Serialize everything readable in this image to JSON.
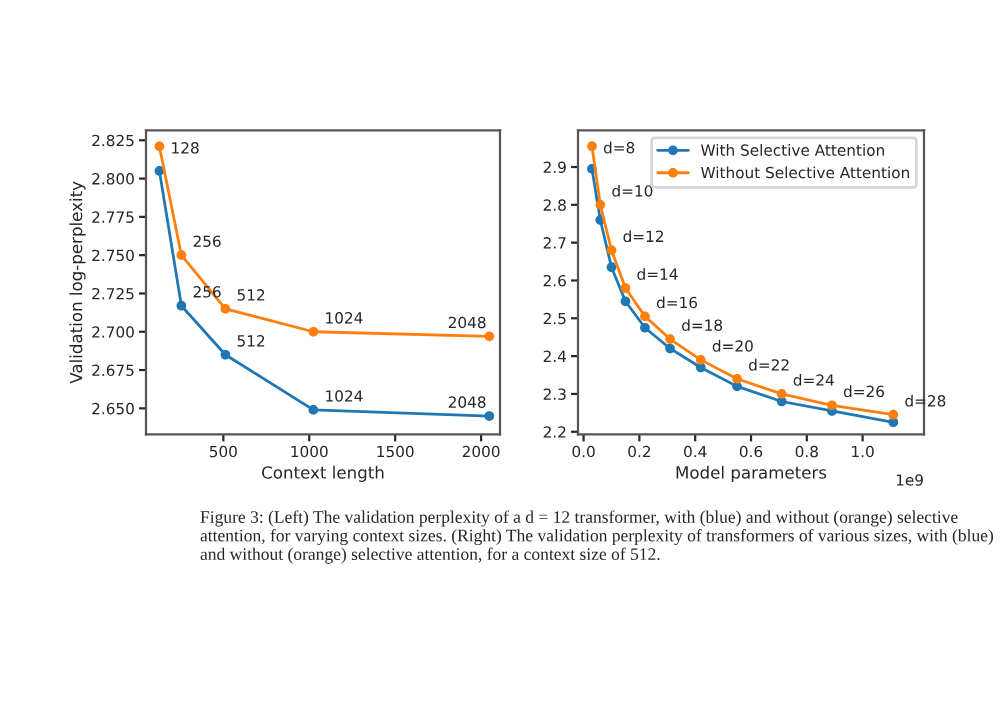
{
  "chart_data": [
    {
      "type": "line",
      "xlabel": "Context length",
      "ylabel": "Validation log-perplexity",
      "x": [
        128,
        256,
        512,
        1024,
        2048
      ],
      "series": [
        {
          "color": "#1f77b4",
          "values": [
            2.805,
            2.717,
            2.685,
            2.649,
            2.645
          ]
        },
        {
          "color": "#ff7f0e",
          "values": [
            2.821,
            2.75,
            2.715,
            2.7,
            2.697
          ]
        }
      ],
      "xlim": [
        50,
        2110
      ],
      "xticks": [
        500,
        1000,
        1500,
        2000
      ],
      "ylim": [
        2.633,
        2.8315
      ],
      "yticks": [
        {
          "value": 2.65,
          "label": "2.650"
        },
        {
          "value": 2.675,
          "label": "2.675"
        },
        {
          "value": 2.7,
          "label": "2.700"
        },
        {
          "value": 2.725,
          "label": "2.725"
        },
        {
          "value": 2.75,
          "label": "2.750"
        },
        {
          "value": 2.775,
          "label": "2.775"
        },
        {
          "value": 2.8,
          "label": "2.800"
        },
        {
          "value": 2.825,
          "label": "2.825"
        }
      ],
      "marker": "circle",
      "grid": false,
      "legend": false,
      "annotations": [
        "Figure 3: (Left) The validation perplexity of a d = 12 transformer, with (blue) and without (orange) selective attention, for varying context sizes. (Right) The validation perplexity of transformers of various sizes, with (blue) and without (orange) selective attention, for a context size of 512.",
        {
          "text": "128",
          "x": 128,
          "y": 2.821
        },
        {
          "text": "256",
          "x": 256,
          "y": 2.75
        },
        {
          "text": "512",
          "x": 512,
          "y": 2.715
        },
        {
          "text": "1024",
          "x": 1024,
          "y": 2.7
        },
        {
          "text": "2048",
          "x": 2048,
          "y": 2.697
        },
        {
          "text": "256",
          "x": 256,
          "y": 2.717
        },
        {
          "text": "512",
          "x": 512,
          "y": 2.685
        },
        {
          "text": "1024",
          "x": 1024,
          "y": 2.649
        },
        {
          "text": "2048",
          "x": 2048,
          "y": 2.645
        }
      ]
    },
    {
      "type": "line",
      "xlabel": "Model parameters",
      "x": [
        0.03,
        0.06,
        0.1,
        0.15,
        0.22,
        0.31,
        0.42,
        0.55,
        0.71,
        0.89,
        1.11
      ],
      "series": [
        {
          "name": "With Selective Attention",
          "color": "#1f77b4",
          "values": [
            2.895,
            2.76,
            2.635,
            2.545,
            2.475,
            2.42,
            2.37,
            2.32,
            2.28,
            2.255,
            2.225
          ]
        },
        {
          "name": "Without Selective Attention",
          "color": "#ff7f0e",
          "values": [
            2.955,
            2.8,
            2.68,
            2.58,
            2.505,
            2.445,
            2.39,
            2.34,
            2.3,
            2.27,
            2.245
          ]
        }
      ],
      "xlim": [
        -0.02,
        1.22
      ],
      "xticks": [
        {
          "value": 0,
          "label": "0.0"
        },
        0.2,
        0.4,
        0.6,
        0.8,
        {
          "value": 1,
          "label": "1.0"
        }
      ],
      "ylim": [
        2.193,
        2.997
      ],
      "yticks": [
        2.2,
        2.3,
        2.4,
        2.5,
        2.6,
        2.7,
        2.8,
        2.9
      ],
      "marker": "circle",
      "grid": false,
      "legend": "top right",
      "annotations": [
        "1e9",
        {
          "text": "d=8",
          "x": 0.03,
          "y": 2.955
        },
        {
          "text": "d=10",
          "x": 0.06,
          "y": 2.8
        },
        {
          "text": "d=12",
          "x": 0.1,
          "y": 2.68
        },
        {
          "text": "d=14",
          "x": 0.15,
          "y": 2.58
        },
        {
          "text": "d=16",
          "x": 0.22,
          "y": 2.505
        },
        {
          "text": "d=18",
          "x": 0.31,
          "y": 2.445
        },
        {
          "text": "d=20",
          "x": 0.42,
          "y": 2.39
        },
        {
          "text": "d=22",
          "x": 0.55,
          "y": 2.34
        },
        {
          "text": "d=24",
          "x": 0.71,
          "y": 2.3
        },
        {
          "text": "d=26",
          "x": 0.89,
          "y": 2.27
        },
        {
          "text": "d=28",
          "x": 1.11,
          "y": 2.245
        }
      ]
    }
  ]
}
